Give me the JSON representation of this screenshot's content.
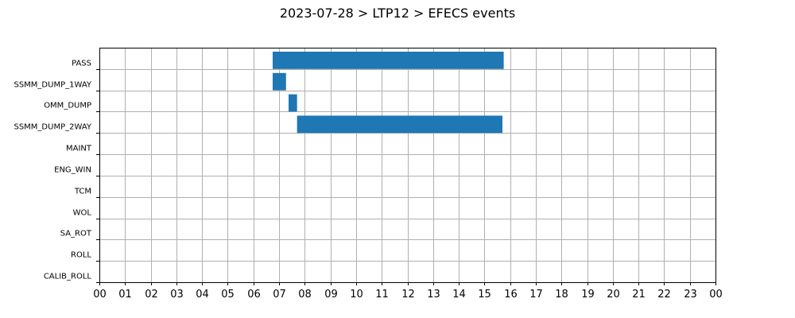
{
  "chart_data": {
    "type": "bar",
    "orientation": "horizontal-timeline",
    "title": "2023-07-28 > LTP12 > EFECS events",
    "categories": [
      "PASS",
      "SSMM_DUMP_1WAY",
      "OMM_DUMP",
      "SSMM_DUMP_2WAY",
      "MAINT",
      "ENG_WIN",
      "TCM",
      "WOL",
      "SA_ROT",
      "ROLL",
      "CALIB_ROLL"
    ],
    "x_tick_labels": [
      "00",
      "01",
      "02",
      "03",
      "04",
      "05",
      "06",
      "07",
      "08",
      "09",
      "10",
      "11",
      "12",
      "13",
      "14",
      "15",
      "16",
      "17",
      "18",
      "19",
      "20",
      "21",
      "22",
      "23",
      "00"
    ],
    "xlim": [
      0,
      24
    ],
    "x_unit": "hour of day",
    "grid": true,
    "bar_color": "#1f77b4",
    "events": [
      {
        "category": "PASS",
        "start": 6.75,
        "end": 15.75
      },
      {
        "category": "SSMM_DUMP_1WAY",
        "start": 6.75,
        "end": 7.27
      },
      {
        "category": "OMM_DUMP",
        "start": 7.37,
        "end": 7.7
      },
      {
        "category": "SSMM_DUMP_2WAY",
        "start": 7.7,
        "end": 15.7
      }
    ]
  }
}
